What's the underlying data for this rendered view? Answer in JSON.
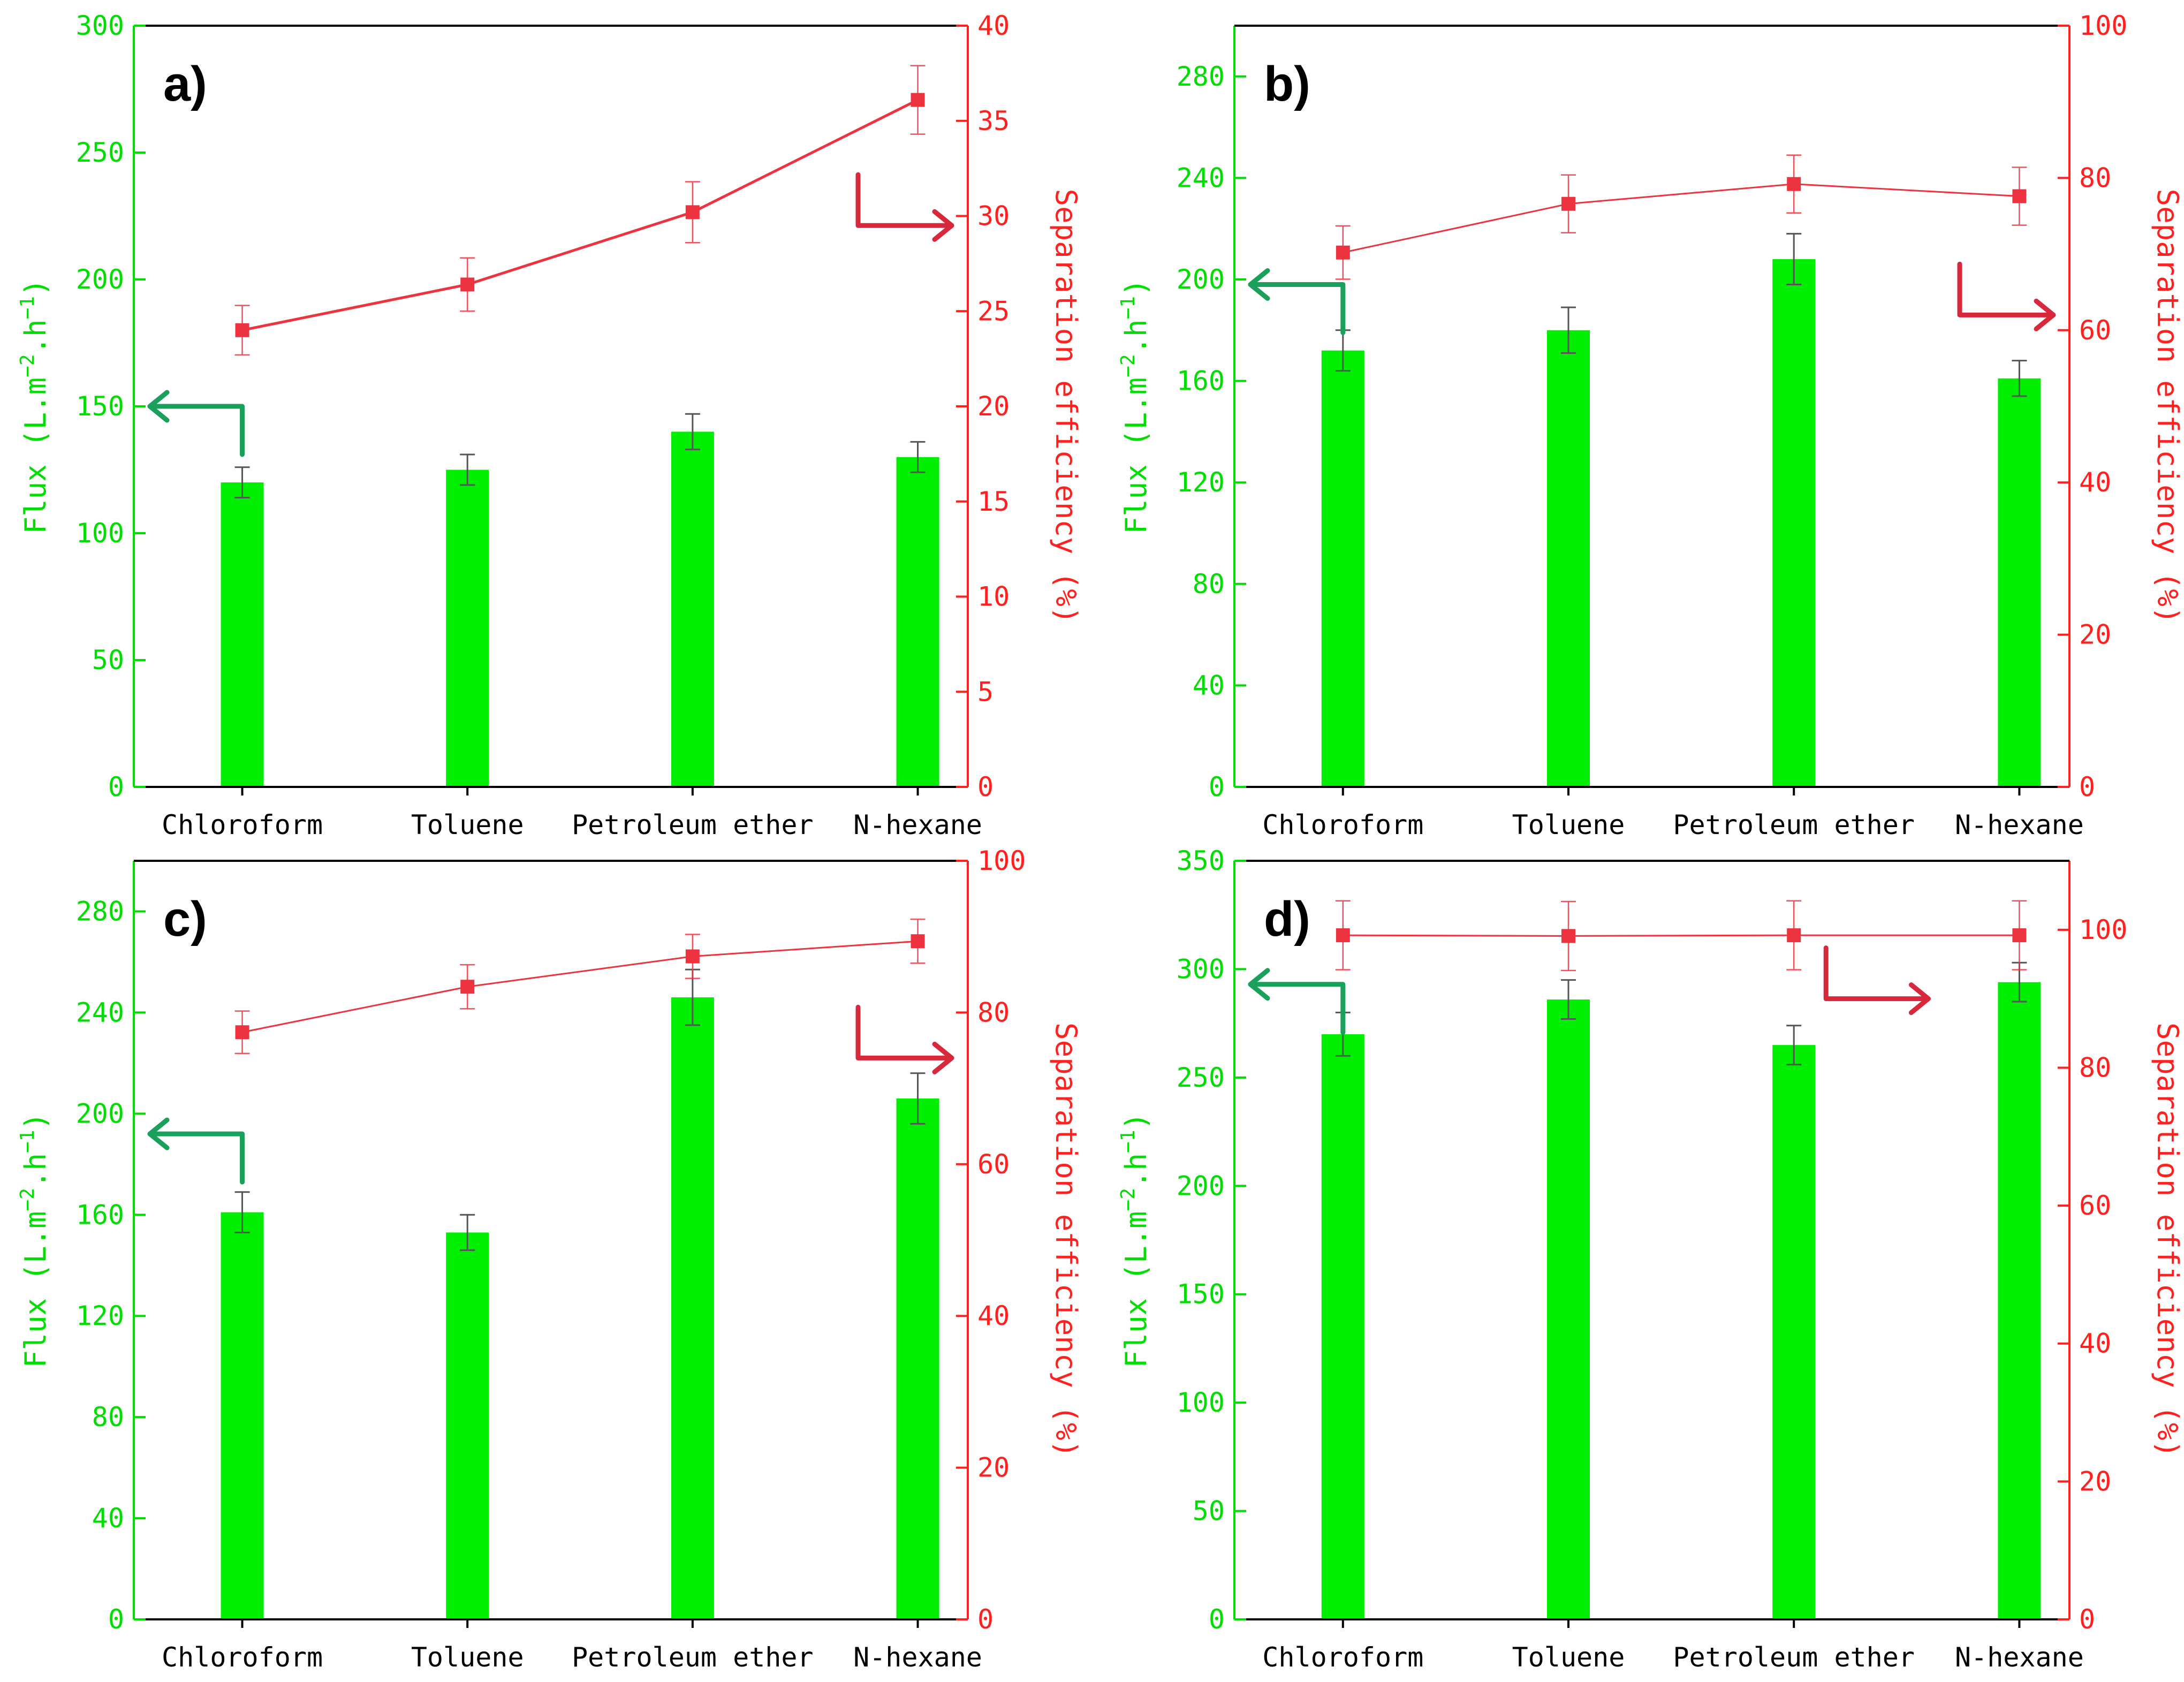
{
  "colors": {
    "bar": "#00ee00",
    "flux_axis": "#00dd00",
    "efficiency": "#ee3340",
    "efficiency_axis": "#ff2020",
    "left_arrow": "#1aa05a",
    "right_arrow": "#d8283c",
    "error_bar": "#555555"
  },
  "chart_data": [
    {
      "type": "bar",
      "panel_label": "a)",
      "categories": [
        "Chloroform",
        "Toluene",
        "Petroleum ether",
        "N-hexane"
      ],
      "series": [
        {
          "name": "Flux",
          "axis": "left",
          "values": [
            120,
            125,
            140,
            130
          ],
          "errors": [
            6,
            6,
            7,
            6
          ]
        },
        {
          "name": "Separation efficiency",
          "axis": "right",
          "style": "line",
          "values": [
            24.0,
            26.4,
            30.2,
            36.1
          ],
          "errors": [
            1.3,
            1.4,
            1.6,
            1.8
          ]
        }
      ],
      "ylabel": "Flux (L.m−2.h−1)",
      "ylabel_parts": {
        "prefix": "Flux (L.m",
        "exp1": "−2",
        "mid": ".h",
        "exp2": "−1",
        "suffix": ")"
      },
      "ylabel_right": "Separation efficiency (%)",
      "ylim": [
        0,
        300
      ],
      "yticks": [
        0,
        50,
        100,
        150,
        200,
        250,
        300
      ],
      "ylim_right": [
        0,
        40
      ],
      "yticks_right": [
        0,
        5,
        10,
        15,
        20,
        25,
        30,
        35,
        40
      ],
      "left_arrow_on": "Chloroform",
      "left_arrow_at": 150,
      "right_arrow_at": 29.5
    },
    {
      "type": "bar",
      "panel_label": "b)",
      "categories": [
        "Chloroform",
        "Toluene",
        "Petroleum ether",
        "N-hexane"
      ],
      "series": [
        {
          "name": "Flux",
          "axis": "left",
          "values": [
            172,
            180,
            208,
            161
          ],
          "errors": [
            8,
            9,
            10,
            7
          ]
        },
        {
          "name": "Separation efficiency",
          "axis": "right",
          "style": "line",
          "values": [
            70.2,
            76.6,
            79.2,
            77.6
          ],
          "errors": [
            3.5,
            3.8,
            3.8,
            3.8
          ]
        }
      ],
      "ylabel": "Flux (L.m−2.h−1)",
      "ylabel_parts": {
        "prefix": "Flux (L.m",
        "exp1": "−2",
        "mid": ".h",
        "exp2": "−1",
        "suffix": ")"
      },
      "ylabel_right": "Separation efficiency (%)",
      "ylim": [
        0,
        300
      ],
      "yticks": [
        0,
        40,
        80,
        120,
        160,
        200,
        240,
        280
      ],
      "ylim_right": [
        0,
        100
      ],
      "yticks_right": [
        0,
        20,
        40,
        60,
        80,
        100
      ],
      "left_arrow_on": "Chloroform",
      "left_arrow_at": 198,
      "right_arrow_at": 62
    },
    {
      "type": "bar",
      "panel_label": "c)",
      "categories": [
        "Chloroform",
        "Toluene",
        "Petroleum ether",
        "N-hexane"
      ],
      "series": [
        {
          "name": "Flux",
          "axis": "left",
          "values": [
            161,
            153,
            246,
            206
          ],
          "errors": [
            8,
            7,
            11,
            10
          ]
        },
        {
          "name": "Separation efficiency",
          "axis": "right",
          "style": "line",
          "values": [
            77.4,
            83.4,
            87.4,
            89.4
          ],
          "errors": [
            2.8,
            2.9,
            2.9,
            2.9
          ]
        }
      ],
      "ylabel": "Flux (L.m−2.h−1)",
      "ylabel_parts": {
        "prefix": "Flux (L.m",
        "exp1": "−2",
        "mid": ".h",
        "exp2": "−1",
        "suffix": ")"
      },
      "ylabel_right": "Separation efficiency (%)",
      "ylim": [
        0,
        300
      ],
      "yticks": [
        0,
        40,
        80,
        120,
        160,
        200,
        240,
        280
      ],
      "ylim_right": [
        0,
        100
      ],
      "yticks_right": [
        0,
        20,
        40,
        60,
        80,
        100
      ],
      "left_arrow_on": "Chloroform",
      "left_arrow_at": 192,
      "right_arrow_at": 74
    },
    {
      "type": "bar",
      "panel_label": "d)",
      "categories": [
        "Chloroform",
        "Toluene",
        "Petroleum ether",
        "N-hexane"
      ],
      "series": [
        {
          "name": "Flux",
          "axis": "left",
          "values": [
            270,
            286,
            265,
            294
          ],
          "errors": [
            10,
            9,
            9,
            9
          ]
        },
        {
          "name": "Separation efficiency",
          "axis": "right",
          "style": "line",
          "values": [
            99.2,
            99.1,
            99.2,
            99.2
          ],
          "errors": [
            5.0,
            5.0,
            5.0,
            5.0
          ]
        }
      ],
      "ylabel": "Flux (L.m−2.h−1)",
      "ylabel_parts": {
        "prefix": "Flux (L.m",
        "exp1": "−2",
        "mid": ".h",
        "exp2": "−1",
        "suffix": ")"
      },
      "ylabel_right": "Separation efficiency (%)",
      "ylim": [
        0,
        350
      ],
      "yticks": [
        0,
        50,
        100,
        150,
        200,
        250,
        300,
        350
      ],
      "ylim_right": [
        0,
        110
      ],
      "yticks_right": [
        0,
        20,
        40,
        60,
        80,
        100
      ],
      "left_arrow_on": "Chloroform",
      "left_arrow_at": 293,
      "right_arrow_at": 90
    }
  ]
}
